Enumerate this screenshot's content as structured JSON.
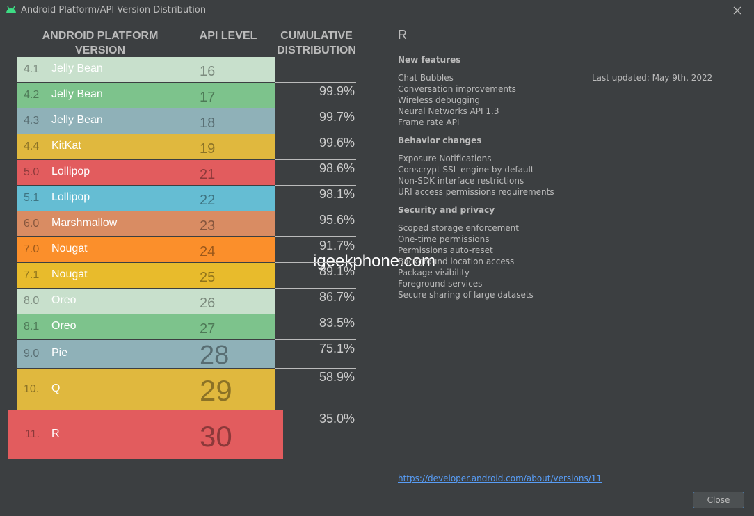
{
  "window": {
    "title": "Android Platform/API Version Distribution",
    "close_button": "Close"
  },
  "table": {
    "headers": [
      "ANDROID PLATFORM VERSION",
      "API LEVEL",
      "CUMULATIVE DISTRIBUTION"
    ],
    "rows": [
      {
        "version": "4.1",
        "name": "Jelly Bean",
        "api_level": 16,
        "color": "#c8e0cc"
      },
      {
        "version": "4.2",
        "name": "Jelly Bean",
        "api_level": 17,
        "cumulative_distribution": "99.9%",
        "color": "#7dc38c"
      },
      {
        "version": "4.3",
        "name": "Jelly Bean",
        "api_level": 18,
        "cumulative_distribution": "99.7%",
        "color": "#8fb1b8"
      },
      {
        "version": "4.4",
        "name": "KitKat",
        "api_level": 19,
        "cumulative_distribution": "99.6%",
        "color": "#e0b83e"
      },
      {
        "version": "5.0",
        "name": "Lollipop",
        "api_level": 21,
        "cumulative_distribution": "98.6%",
        "color": "#e25c5e"
      },
      {
        "version": "5.1",
        "name": "Lollipop",
        "api_level": 22,
        "cumulative_distribution": "98.1%",
        "color": "#65bdd3"
      },
      {
        "version": "6.0",
        "name": "Marshmallow",
        "api_level": 23,
        "cumulative_distribution": "95.6%",
        "color": "#d98c63"
      },
      {
        "version": "7.0",
        "name": "Nougat",
        "api_level": 24,
        "cumulative_distribution": "91.7%",
        "color": "#fb8f2b"
      },
      {
        "version": "7.1",
        "name": "Nougat",
        "api_level": 25,
        "cumulative_distribution": "89.1%",
        "color": "#e8bb2c"
      },
      {
        "version": "8.0",
        "name": "Oreo",
        "api_level": 26,
        "cumulative_distribution": "86.7%",
        "color": "#c8e0cc"
      },
      {
        "version": "8.1",
        "name": "Oreo",
        "api_level": 27,
        "cumulative_distribution": "83.5%",
        "color": "#7dc38c"
      },
      {
        "version": "9.0",
        "name": "Pie",
        "api_level": 28,
        "cumulative_distribution": "75.1%",
        "color": "#8fb1b8"
      },
      {
        "version": "10.",
        "name": "Q",
        "api_level": 29,
        "cumulative_distribution": "58.9%",
        "color": "#e0b83e"
      },
      {
        "version": "11.",
        "name": "R",
        "api_level": 30,
        "cumulative_distribution": "35.0%",
        "color": "#e25c5e"
      }
    ]
  },
  "details": {
    "title": "R",
    "last_updated": "Last updated: May 9th, 2022",
    "sections": [
      {
        "title": "New features",
        "items": [
          "Chat Bubbles",
          "Conversation improvements",
          "Wireless debugging",
          "Neural Networks API 1.3",
          "Frame rate API"
        ]
      },
      {
        "title": "Behavior changes",
        "items": [
          "Exposure Notifications",
          "Conscrypt SSL engine by default",
          "Non-SDK interface restrictions",
          "URI access permissions requirements"
        ]
      },
      {
        "title": "Security and privacy",
        "items": [
          "Scoped storage enforcement",
          "One-time permissions",
          "Permissions auto-reset",
          "Background location access",
          "Package visibility",
          "Foreground services",
          "Secure sharing of large datasets"
        ]
      }
    ],
    "link": "https://developer.android.com/about/versions/11"
  },
  "watermark": "igeekphone.com"
}
